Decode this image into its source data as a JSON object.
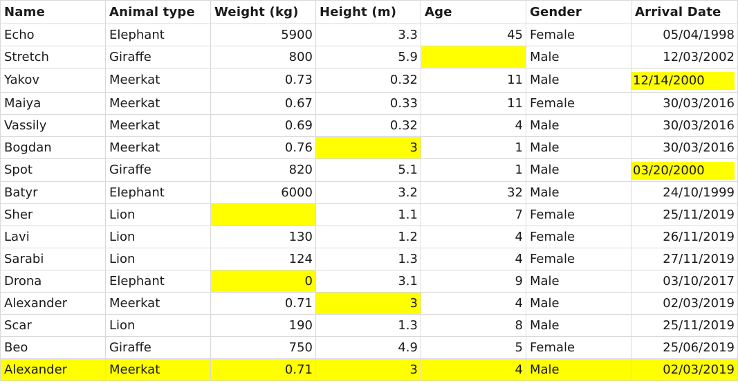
{
  "sheet": {
    "highlight_color": "#ffff00",
    "columns": [
      "Name",
      "Animal type",
      "Weight (kg)",
      "Height (m)",
      "Age",
      "Gender",
      "Arrival Date"
    ],
    "rows": [
      [
        "Echo",
        "Elephant",
        "5900",
        "3.3",
        "45",
        "Female",
        "05/04/1998"
      ],
      [
        "Stretch",
        "Giraffe",
        "800",
        "5.9",
        "",
        "Male",
        "12/03/2002"
      ],
      [
        "Yakov",
        "Meerkat",
        "0.73",
        "0.32",
        "11",
        "Male",
        "12/14/2000"
      ],
      [
        "Maiya",
        "Meerkat",
        "0.67",
        "0.33",
        "11",
        "Female",
        "30/03/2016"
      ],
      [
        "Vassily",
        "Meerkat",
        "0.69",
        "0.32",
        "4",
        "Male",
        "30/03/2016"
      ],
      [
        "Bogdan",
        "Meerkat",
        "0.76",
        "3",
        "1",
        "Male",
        "30/03/2016"
      ],
      [
        "Spot",
        "Giraffe",
        "820",
        "5.1",
        "1",
        "Male",
        "03/20/2000"
      ],
      [
        "Batyr",
        "Elephant",
        "6000",
        "3.2",
        "32",
        "Male",
        "24/10/1999"
      ],
      [
        "Sher",
        "Lion",
        "",
        "1.1",
        "7",
        "Female",
        "25/11/2019"
      ],
      [
        "Lavi",
        "Lion",
        "130",
        "1.2",
        "4",
        "Female",
        "26/11/2019"
      ],
      [
        "Sarabi",
        "Lion",
        "124",
        "1.3",
        "4",
        "Female",
        "27/11/2019"
      ],
      [
        "Drona",
        "Elephant",
        "0",
        "3.1",
        "9",
        "Male",
        "03/10/2017"
      ],
      [
        "Alexander",
        "Meerkat",
        "0.71",
        "3",
        "4",
        "Male",
        "02/03/2019"
      ],
      [
        "Scar",
        "Lion",
        "190",
        "1.3",
        "8",
        "Male",
        "25/11/2019"
      ],
      [
        "Beo",
        "Giraffe",
        "750",
        "4.9",
        "5",
        "Female",
        "25/06/2019"
      ],
      [
        "Alexander",
        "Meerkat",
        "0.71",
        "3",
        "4",
        "Male",
        "02/03/2019"
      ]
    ]
  }
}
